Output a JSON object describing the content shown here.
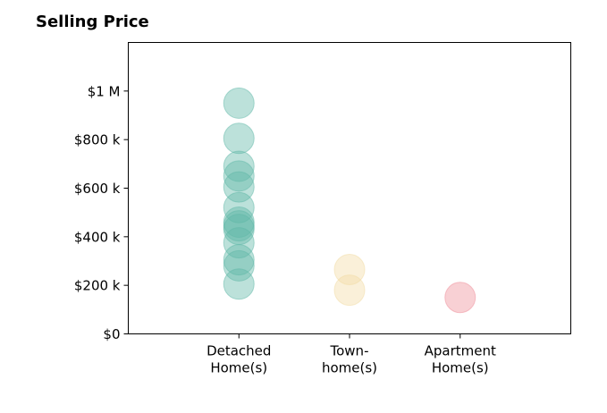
{
  "chart_data": {
    "type": "scatter",
    "title": "Selling Price",
    "xlabel": "",
    "ylabel": "",
    "categories": [
      [
        "Detached",
        "Home(s)"
      ],
      [
        "Town-",
        "home(s)"
      ],
      [
        "Apartment",
        "Home(s)"
      ]
    ],
    "yticks": [
      {
        "value": 0,
        "label": "$0"
      },
      {
        "value": 200000,
        "label": "$200 k"
      },
      {
        "value": 400000,
        "label": "$400 k"
      },
      {
        "value": 600000,
        "label": "$600 k"
      },
      {
        "value": 800000,
        "label": "$800 k"
      },
      {
        "value": 1000000,
        "label": "$1 M"
      }
    ],
    "ylim": [
      0,
      1200000
    ],
    "xlim": [
      -1,
      3
    ],
    "grid": false,
    "series": [
      {
        "category": 0,
        "color": "#5fb8a8",
        "values": [
          950000,
          805000,
          690000,
          650000,
          605000,
          520000,
          460000,
          445000,
          430000,
          375000,
          305000,
          280000,
          205000
        ]
      },
      {
        "category": 1,
        "color": "#f2dca4",
        "values": [
          265000,
          180000
        ]
      },
      {
        "category": 2,
        "color": "#ef8e99",
        "values": [
          150000
        ]
      }
    ]
  }
}
